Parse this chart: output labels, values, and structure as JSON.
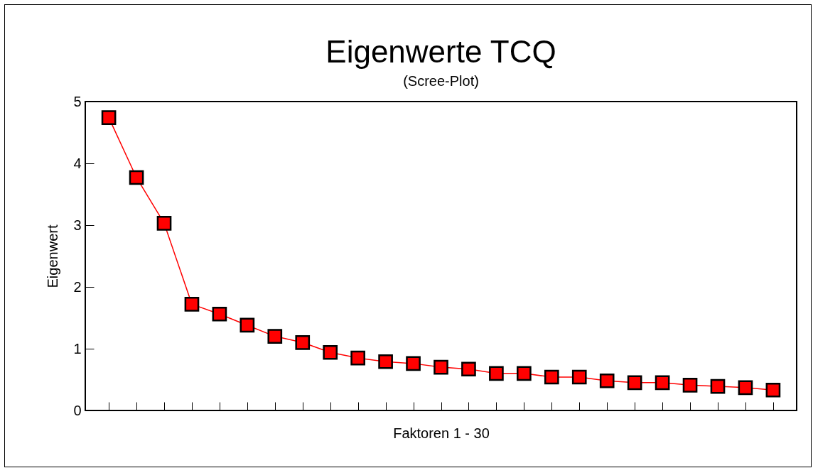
{
  "chart_data": {
    "type": "line",
    "title": "Eigenwerte TCQ",
    "subtitle": "(Scree-Plot)",
    "xlabel": "Faktoren 1 - 30",
    "ylabel": "Eigenwert",
    "categories": [
      null,
      null,
      null,
      null,
      null,
      null,
      null,
      null,
      null,
      null,
      null,
      null,
      null,
      null,
      null,
      null,
      null,
      null,
      null,
      null,
      null,
      null,
      null,
      null,
      null
    ],
    "series": [
      {
        "color": "#ff0000",
        "values": [
          4.74,
          3.77,
          3.03,
          1.72,
          1.56,
          1.38,
          1.2,
          1.1,
          0.94,
          0.85,
          0.79,
          0.76,
          0.7,
          0.67,
          0.6,
          0.6,
          0.54,
          0.54,
          0.48,
          0.45,
          0.45,
          0.41,
          0.39,
          0.37,
          0.33
        ]
      }
    ],
    "ylim": [
      0,
      5
    ],
    "yticks": [
      0,
      1,
      2,
      3,
      4,
      5
    ],
    "grid": false,
    "legend": false,
    "marker": "square",
    "line_style": "solid",
    "tick_labels": "y"
  }
}
